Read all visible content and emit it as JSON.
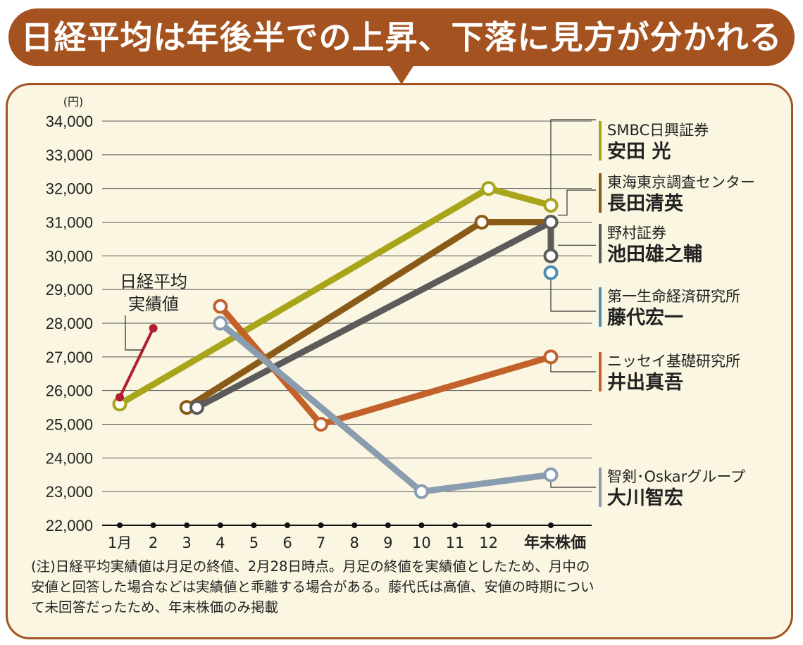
{
  "banner": {
    "title": "日経平均は年後半での上昇、下落に見方が分かれる"
  },
  "chart_data": {
    "type": "line",
    "unit_label": "(円)",
    "ylim": [
      22000,
      34000
    ],
    "y_ticks": [
      22000,
      23000,
      24000,
      25000,
      26000,
      27000,
      28000,
      29000,
      30000,
      31000,
      32000,
      33000,
      34000
    ],
    "y_tick_labels": [
      "22,000",
      "23,000",
      "24,000",
      "25,000",
      "26,000",
      "27,000",
      "28,000",
      "29,000",
      "30,000",
      "31,000",
      "32,000",
      "33,000",
      "34,000"
    ],
    "x_categories": [
      "1月",
      "2",
      "3",
      "4",
      "5",
      "6",
      "7",
      "8",
      "9",
      "10",
      "11",
      "12",
      "年末株価"
    ],
    "actual": {
      "label_lines": [
        "日経平均",
        "実績値"
      ],
      "color": "#b01e2f",
      "points": [
        [
          "1月",
          25800
        ],
        [
          "2",
          27850
        ]
      ]
    },
    "series": [
      {
        "firm": "SMBC日興証券",
        "name": "安田 光",
        "color": "#a8a51b",
        "points": [
          [
            "1月",
            25600
          ],
          [
            "12",
            32000
          ],
          [
            "年末株価",
            31500
          ]
        ]
      },
      {
        "firm": "東海東京調査センター",
        "name": "長田清英",
        "color": "#8a5a18",
        "points": [
          [
            "3",
            25500
          ],
          [
            "11.8",
            31000
          ],
          [
            "年末株価",
            31000
          ]
        ]
      },
      {
        "firm": "野村証券",
        "name": "池田雄之輔",
        "color": "#5b5b5b",
        "points": [
          [
            "3.3",
            25500
          ],
          [
            "12.2",
            31000
          ],
          [
            "年末株価",
            30000
          ]
        ]
      },
      {
        "firm": "第一生命経済研究所",
        "name": "藤代宏一",
        "color": "#4a8fb5",
        "points": [
          [
            "年末株価",
            29500
          ]
        ]
      },
      {
        "firm": "ニッセイ基礎研究所",
        "name": "井出真吾",
        "color": "#c2622a",
        "points": [
          [
            "4",
            28500
          ],
          [
            "7",
            25000
          ],
          [
            "年末株価",
            27000
          ]
        ]
      },
      {
        "firm": "智剣･Oskarグループ",
        "name": "大川智宏",
        "color": "#8a9db0",
        "points": [
          [
            "4",
            28000
          ],
          [
            "10",
            23000
          ],
          [
            "年末株価",
            23500
          ]
        ]
      }
    ]
  },
  "note": "(注)日経平均実績値は月足の終値、2月28日時点。月足の終値を実績値としたため、月中の安値と回答した場合などは実績値と乖離する場合がある。藤代氏は高値、安値の時期について未回答だったため、年末株価のみ掲載"
}
